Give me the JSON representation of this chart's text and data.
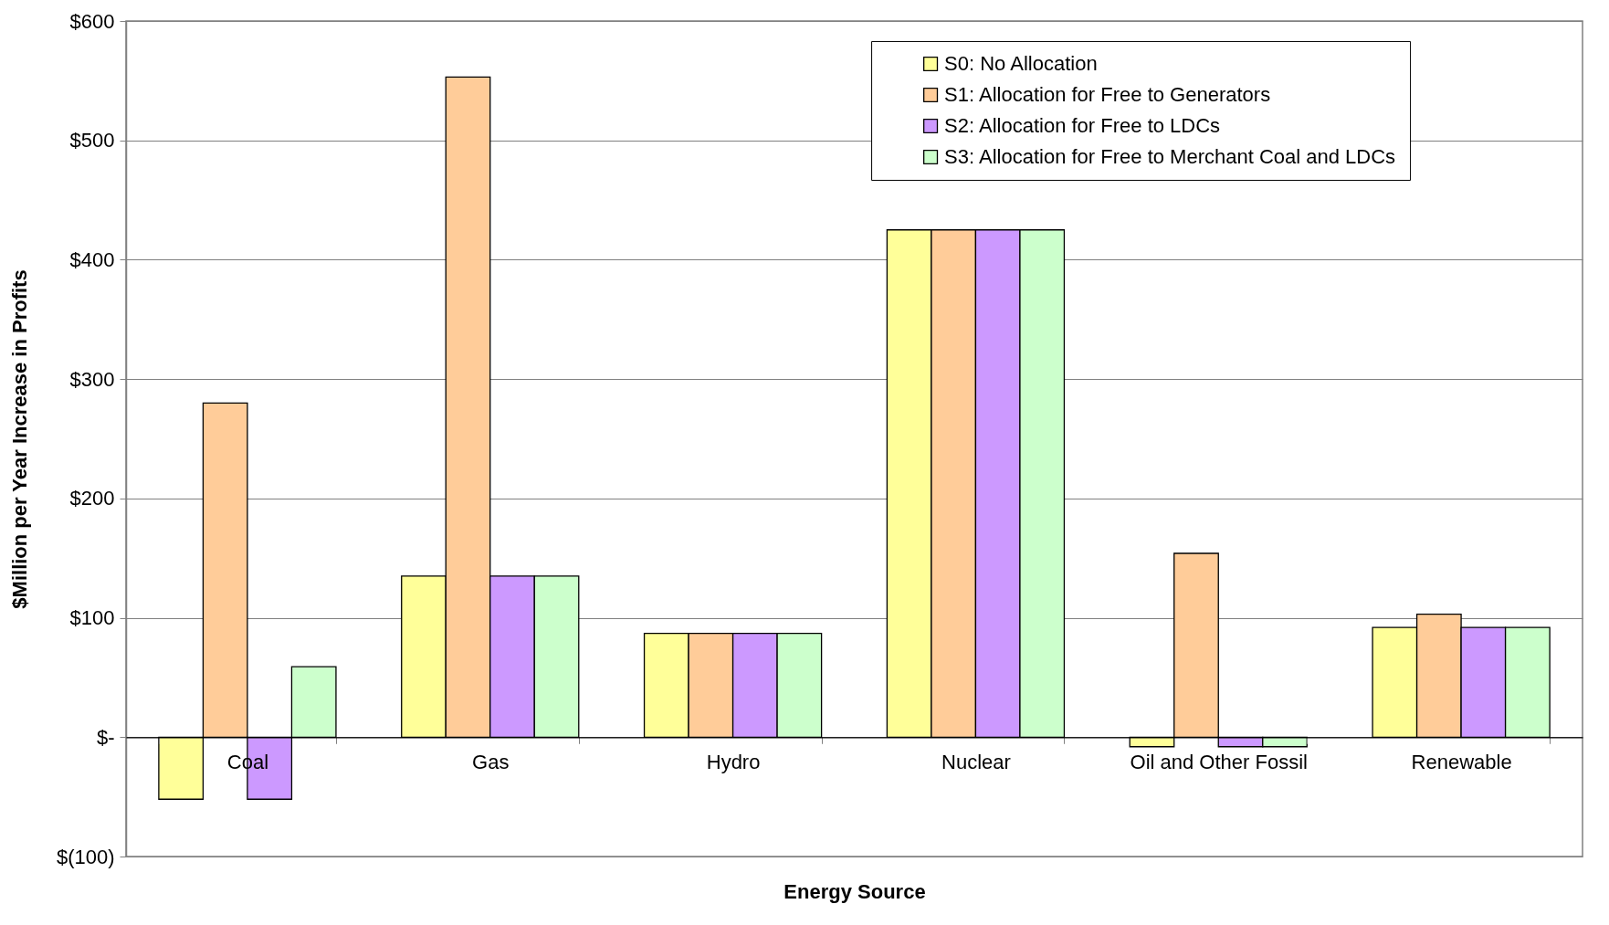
{
  "chart_data": {
    "type": "bar",
    "xlabel": "Energy Source",
    "ylabel": "$Million per Year Increase in Profits",
    "categories": [
      "Coal",
      "Gas",
      "Hydro",
      "Nuclear",
      "Oil and Other Fossil",
      "Renewable"
    ],
    "series": [
      {
        "name": "S0: No Allocation",
        "color": "#ffff99",
        "values": [
          -52,
          135,
          87,
          425,
          -8,
          92
        ]
      },
      {
        "name": "S1: Allocation for Free to Generators",
        "color": "#ffcc99",
        "values": [
          280,
          553,
          87,
          425,
          154,
          103
        ]
      },
      {
        "name": "S2: Allocation for Free to LDCs",
        "color": "#cc99ff",
        "values": [
          -52,
          135,
          87,
          425,
          -8,
          92
        ]
      },
      {
        "name": "S3: Allocation for Free to Merchant Coal and LDCs",
        "color": "#ccffcc",
        "values": [
          59,
          135,
          87,
          425,
          -8,
          92
        ]
      }
    ],
    "ylim": [
      -100,
      600
    ],
    "yticks": [
      {
        "value": -100,
        "label": "$(100)"
      },
      {
        "value": 0,
        "label": "$-"
      },
      {
        "value": 100,
        "label": "$100"
      },
      {
        "value": 200,
        "label": "$200"
      },
      {
        "value": 300,
        "label": "$300"
      },
      {
        "value": 400,
        "label": "$400"
      },
      {
        "value": 500,
        "label": "$500"
      },
      {
        "value": 600,
        "label": "$600"
      }
    ],
    "grid": "y",
    "legend": "top right"
  }
}
